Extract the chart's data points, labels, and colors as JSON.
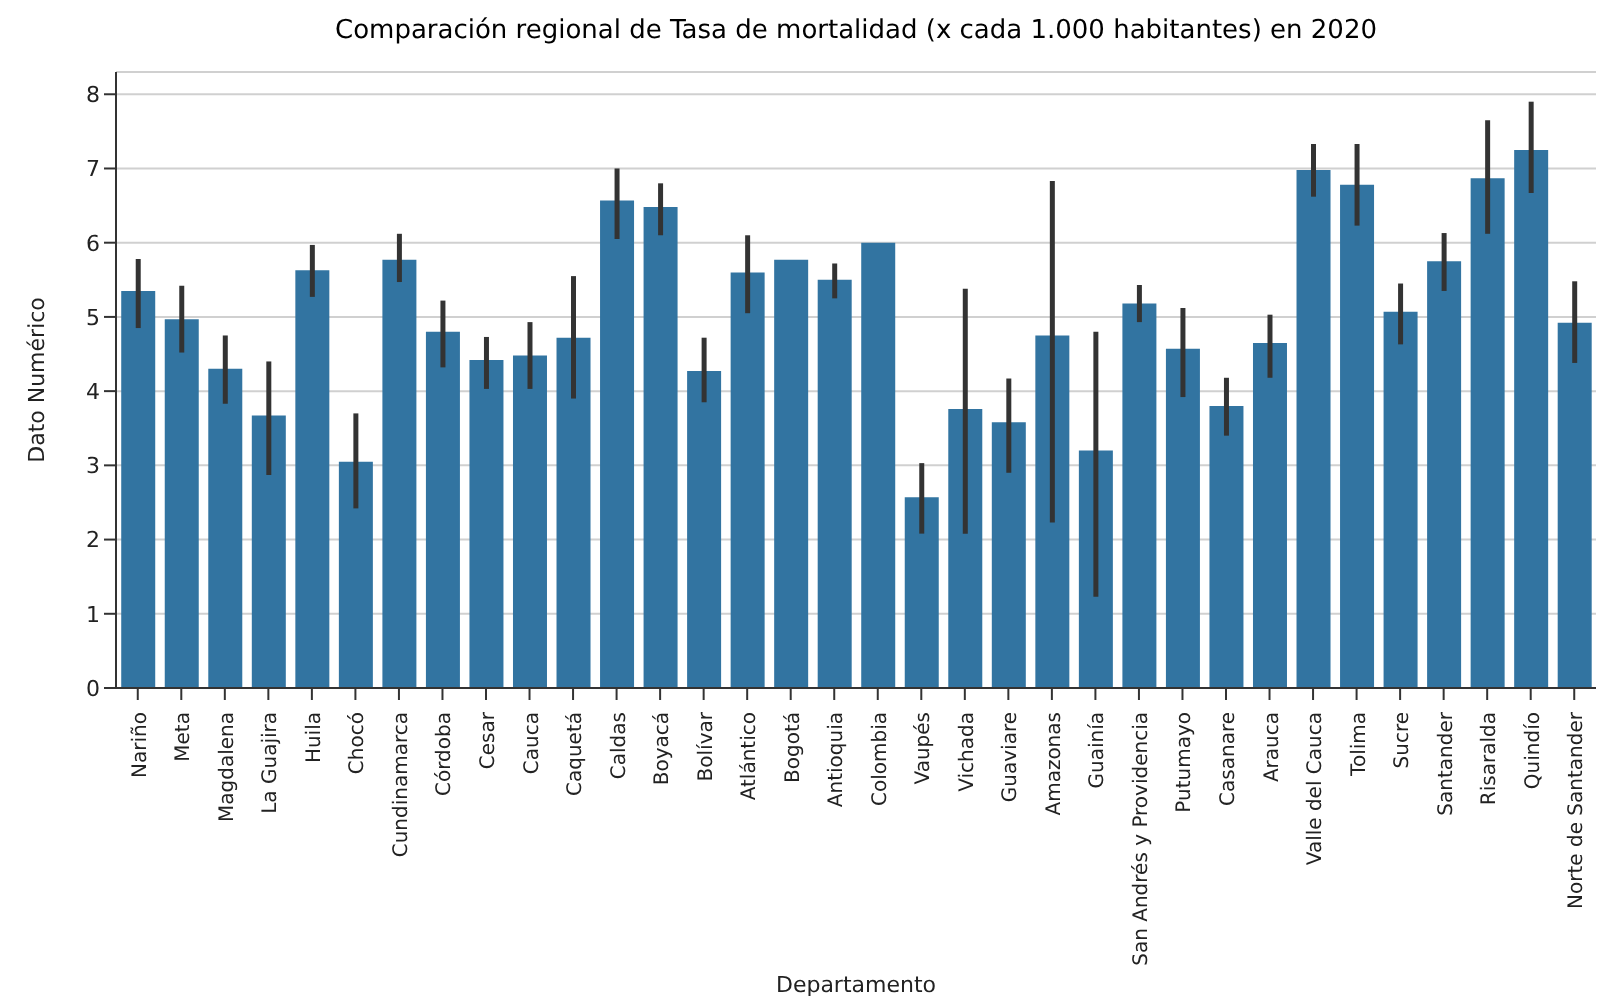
{
  "chart_data": {
    "type": "bar",
    "title": "Comparación regional de Tasa de mortalidad (x cada 1.000 habitantes) en 2020",
    "xlabel": "Departamento",
    "ylabel": "Dato Numérico",
    "categories": [
      "Nariño",
      "Meta",
      "Magdalena",
      "La Guajira",
      "Huila",
      "Chocó",
      "Cundinamarca",
      "Córdoba",
      "Cesar",
      "Cauca",
      "Caquetá",
      "Caldas",
      "Boyacá",
      "Bolívar",
      "Atlántico",
      "Bogotá",
      "Antioquia",
      "Colombia",
      "Vaupés",
      "Vichada",
      "Guaviare",
      "Amazonas",
      "Guainía",
      "San Andrés y Providencia",
      "Putumayo",
      "Casanare",
      "Arauca",
      "Valle del Cauca",
      "Tolima",
      "Sucre",
      "Santander",
      "Risaralda",
      "Quindío",
      "Norte de Santander"
    ],
    "values": [
      5.35,
      4.97,
      4.3,
      3.67,
      5.63,
      3.05,
      5.77,
      4.8,
      4.42,
      4.48,
      4.72,
      6.57,
      6.48,
      4.27,
      5.6,
      5.77,
      5.5,
      6.0,
      2.57,
      3.76,
      3.58,
      4.75,
      3.2,
      5.18,
      4.57,
      3.8,
      4.65,
      6.98,
      6.78,
      5.07,
      5.75,
      6.87,
      7.25,
      4.92
    ],
    "errors": [
      [
        4.85,
        5.78
      ],
      [
        4.52,
        5.42
      ],
      [
        3.83,
        4.75
      ],
      [
        2.87,
        4.4
      ],
      [
        5.27,
        5.97
      ],
      [
        2.42,
        3.7
      ],
      [
        5.47,
        6.12
      ],
      [
        4.32,
        5.22
      ],
      [
        4.03,
        4.73
      ],
      [
        4.03,
        4.93
      ],
      [
        3.9,
        5.55
      ],
      [
        6.05,
        7.0
      ],
      [
        6.1,
        6.8
      ],
      [
        3.85,
        4.72
      ],
      [
        5.05,
        6.1
      ],
      null,
      [
        5.25,
        5.72
      ],
      null,
      [
        2.08,
        3.03
      ],
      [
        2.08,
        5.38
      ],
      [
        2.9,
        4.17
      ],
      [
        2.23,
        6.83
      ],
      [
        1.23,
        4.8
      ],
      [
        4.93,
        5.43
      ],
      [
        3.92,
        5.12
      ],
      [
        3.4,
        4.18
      ],
      [
        4.18,
        5.03
      ],
      [
        6.62,
        7.33
      ],
      [
        6.23,
        7.33
      ],
      [
        4.63,
        5.45
      ],
      [
        5.35,
        6.13
      ],
      [
        6.12,
        7.65
      ],
      [
        6.67,
        7.9
      ],
      [
        4.38,
        5.48
      ]
    ],
    "color": "#3274a1",
    "ylim": [
      0,
      8.3
    ],
    "yticks": [
      0,
      1,
      2,
      3,
      4,
      5,
      6,
      7,
      8
    ],
    "grid": "y"
  }
}
